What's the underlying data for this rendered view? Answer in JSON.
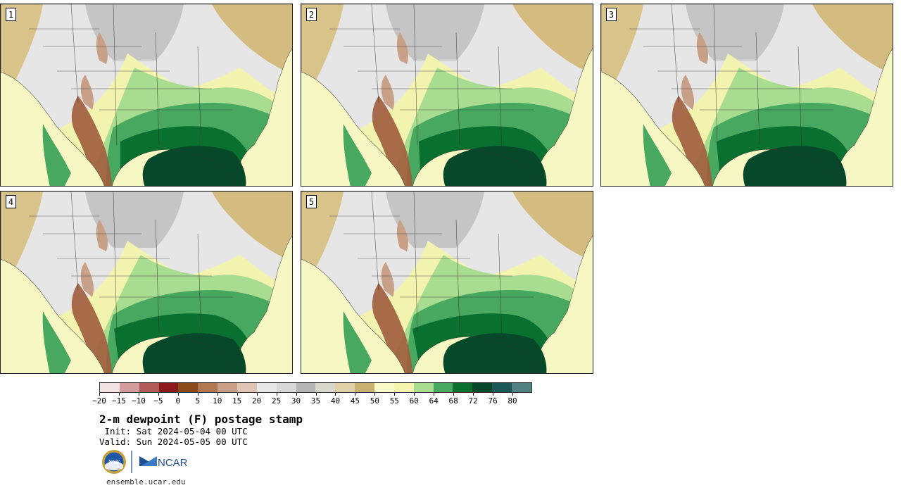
{
  "panels": [
    {
      "id": "panel-1",
      "label": "1"
    },
    {
      "id": "panel-2",
      "label": "2"
    },
    {
      "id": "panel-3",
      "label": "3"
    },
    {
      "id": "panel-4",
      "label": "4"
    },
    {
      "id": "panel-5",
      "label": "5"
    }
  ],
  "legend": {
    "colors": [
      "#f2e4e4",
      "#d49c9c",
      "#b05a5a",
      "#8b1a1a",
      "#8b4a1a",
      "#b07850",
      "#c8a088",
      "#e0c4b4",
      "#e8e8e8",
      "#d8d8d8",
      "#b4b4b4",
      "#d8d8cc",
      "#e0d0a8",
      "#c8b070",
      "#fafac8",
      "#f5f5b0",
      "#a8dc90",
      "#48a860",
      "#0a7030",
      "#08482a",
      "#1a5858",
      "#508080"
    ],
    "ticks": [
      "−20",
      "−15",
      "−10",
      "−5",
      "0",
      "5",
      "10",
      "15",
      "20",
      "25",
      "30",
      "35",
      "40",
      "45",
      "50",
      "55",
      "60",
      "64",
      "68",
      "72",
      "76",
      "80"
    ]
  },
  "title": "2-m dewpoint (F) postage stamp",
  "init": " Init: Sat 2024-05-04 00 UTC",
  "valid": "Valid: Sun 2024-05-05 00 UTC",
  "logos": {
    "nsf": "NSF",
    "ncar": "NCAR"
  },
  "url": "ensemble.ucar.edu"
}
